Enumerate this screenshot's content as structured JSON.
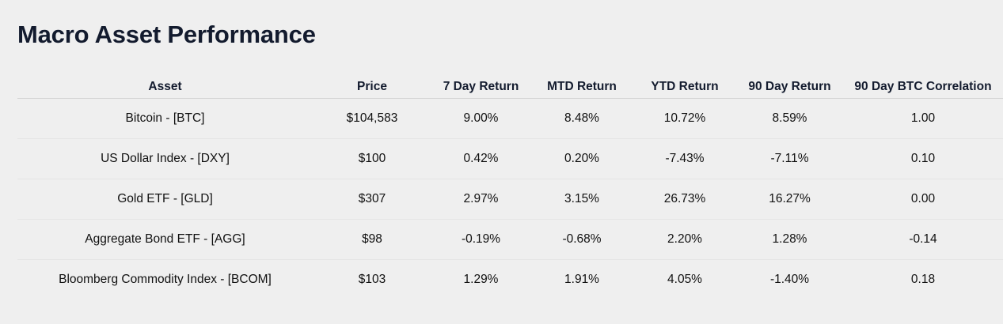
{
  "title": "Macro Asset Performance",
  "columns": [
    "Asset",
    "Price",
    "7 Day Return",
    "MTD Return",
    "YTD Return",
    "90 Day Return",
    "90 Day BTC Correlation"
  ],
  "colors": {
    "positive": "#1b8a1b",
    "negative": "#e02020"
  },
  "rows": [
    {
      "asset": "Bitcoin - [BTC]",
      "price": "$104,583",
      "d7": "9.00%",
      "mtd": "8.48%",
      "ytd": "10.72%",
      "d90": "8.59%",
      "corr": "1.00"
    },
    {
      "asset": "US Dollar Index - [DXY]",
      "price": "$100",
      "d7": "0.42%",
      "mtd": "0.20%",
      "ytd": "-7.43%",
      "d90": "-7.11%",
      "corr": "0.10"
    },
    {
      "asset": "Gold ETF - [GLD]",
      "price": "$307",
      "d7": "2.97%",
      "mtd": "3.15%",
      "ytd": "26.73%",
      "d90": "16.27%",
      "corr": "0.00"
    },
    {
      "asset": "Aggregate Bond ETF - [AGG]",
      "price": "$98",
      "d7": "-0.19%",
      "mtd": "-0.68%",
      "ytd": "2.20%",
      "d90": "1.28%",
      "corr": "-0.14"
    },
    {
      "asset": "Bloomberg Commodity Index - [BCOM]",
      "price": "$103",
      "d7": "1.29%",
      "mtd": "1.91%",
      "ytd": "4.05%",
      "d90": "-1.40%",
      "corr": "0.18"
    }
  ]
}
